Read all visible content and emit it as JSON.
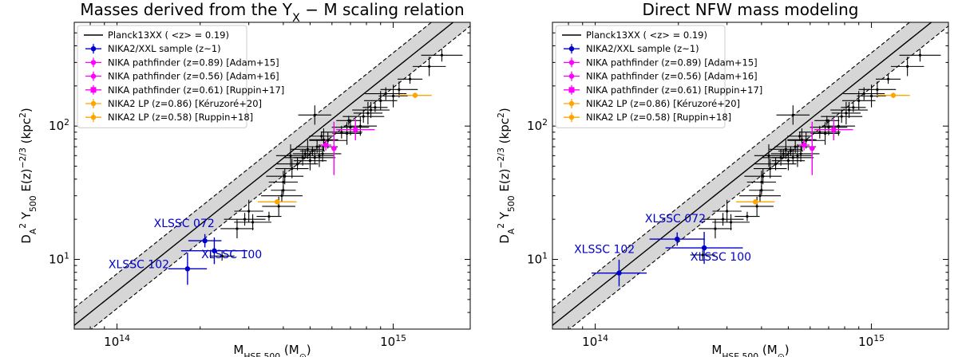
{
  "chart_data": [
    {
      "type": "scatter",
      "title": "Masses derived from the Y_X − M scaling relation",
      "xlabel": "M_HSE,500 (M_⊙)",
      "ylabel": "D_A^2 Y_500 E(z)^−2/3 (kpc^2)",
      "xscale": "log",
      "yscale": "log",
      "xlim": [
        70000000000000.0,
        1900000000000000.0
      ],
      "ylim": [
        3,
        600
      ],
      "xticks": [
        {
          "value": 100000000000000.0,
          "label": "10^14"
        },
        {
          "value": 1000000000000000.0,
          "label": "10^15"
        }
      ],
      "yticks": [
        {
          "value": 10,
          "label": "10^1"
        },
        {
          "value": 100,
          "label": "10^2"
        }
      ],
      "relation": {
        "name": "Planck13XX (<z> = 0.19)",
        "points": [
          [
            70000000000000.0,
            3.2
          ],
          [
            1900000000000000.0,
            760
          ]
        ],
        "band_factor": 1.35
      },
      "legend_position": "top-left",
      "legend": [
        {
          "label": "Planck13XX ( <z> = 0.19)",
          "color": "#000000",
          "kind": "line"
        },
        {
          "label": "NIKA2/XXL sample (z~1)",
          "color": "#0000cc",
          "kind": "point"
        },
        {
          "label": "NIKA pathfinder (z=0.89) [Adam+15]",
          "color": "#ff00ff",
          "kind": "point"
        },
        {
          "label": "NIKA pathfinder (z=0.56) [Adam+16]",
          "color": "#ff00ff",
          "kind": "point"
        },
        {
          "label": "NIKA pathfinder (z=0.61) [Ruppin+17]",
          "color": "#ff00ff",
          "kind": "square"
        },
        {
          "label": "NIKA2 LP (z=0.86) [Kéruzoré+20]",
          "color": "#ffa500",
          "kind": "point"
        },
        {
          "label": "NIKA2 LP (z=0.58) [Ruppin+18]",
          "color": "#ffa500",
          "kind": "point"
        }
      ],
      "series": [
        {
          "name": "NIKA2/XXL sample (z~1)",
          "color": "#0000cc",
          "points": [
            {
              "x": 180000000000000.0,
              "y": 8.5,
              "xerr": 0.07,
              "yerr": 0.12,
              "label": "XLSSC 102"
            },
            {
              "x": 208000000000000.0,
              "y": 13.8,
              "xerr": 0.06,
              "yerr": 0.05,
              "label": "XLSSC 072"
            },
            {
              "x": 225000000000000.0,
              "y": 11.6,
              "xerr": 0.12,
              "yerr": 0.1,
              "label": "XLSSC 100"
            }
          ]
        },
        {
          "name": "NIKA pathfinder",
          "color": "#ff00ff",
          "points": [
            {
              "x": 570000000000000.0,
              "y": 72,
              "xerr": 0.02,
              "yerr": 0.04
            },
            {
              "x": 610000000000000.0,
              "y": 68,
              "xerr": 0.01,
              "yerr": 0.2
            },
            {
              "x": 730000000000000.0,
              "y": 94,
              "xerr": 0.07,
              "yerr": 0.08
            }
          ]
        },
        {
          "name": "NIKA2 LP",
          "color": "#ffa500",
          "points": [
            {
              "x": 380000000000000.0,
              "y": 27,
              "xerr": 0.07,
              "yerr": 0.02
            },
            {
              "x": 1200000000000000.0,
              "y": 170,
              "xerr": 0.06,
              "yerr": 0.02
            }
          ]
        },
        {
          "name": "Planck13XX",
          "color": "#000000",
          "points": [
            {
              "x": 240000000000000.0,
              "y": 10.6
            },
            {
              "x": 272000000000000.0,
              "y": 17
            },
            {
              "x": 290000000000000.0,
              "y": 20
            },
            {
              "x": 300000000000000.0,
              "y": 23
            },
            {
              "x": 310000000000000.0,
              "y": 19
            },
            {
              "x": 355000000000000.0,
              "y": 21
            },
            {
              "x": 385000000000000.0,
              "y": 25
            },
            {
              "x": 395000000000000.0,
              "y": 30
            },
            {
              "x": 400000000000000.0,
              "y": 38
            },
            {
              "x": 405000000000000.0,
              "y": 42
            },
            {
              "x": 400000000000000.0,
              "y": 33
            },
            {
              "x": 430000000000000.0,
              "y": 48
            },
            {
              "x": 450000000000000.0,
              "y": 52
            },
            {
              "x": 425000000000000.0,
              "y": 60
            },
            {
              "x": 470000000000000.0,
              "y": 58
            },
            {
              "x": 480000000000000.0,
              "y": 62
            },
            {
              "x": 500000000000000.0,
              "y": 55
            },
            {
              "x": 520000000000000.0,
              "y": 58
            },
            {
              "x": 540000000000000.0,
              "y": 60
            },
            {
              "x": 555000000000000.0,
              "y": 62
            },
            {
              "x": 510000000000000.0,
              "y": 65
            },
            {
              "x": 490000000000000.0,
              "y": 67
            },
            {
              "x": 530000000000000.0,
              "y": 70
            },
            {
              "x": 560000000000000.0,
              "y": 79
            },
            {
              "x": 580000000000000.0,
              "y": 78
            },
            {
              "x": 550000000000000.0,
              "y": 84
            },
            {
              "x": 520000000000000.0,
              "y": 121
            },
            {
              "x": 650000000000000.0,
              "y": 90
            },
            {
              "x": 680000000000000.0,
              "y": 88
            },
            {
              "x": 700000000000000.0,
              "y": 98
            },
            {
              "x": 690000000000000.0,
              "y": 110
            },
            {
              "x": 760000000000000.0,
              "y": 100
            },
            {
              "x": 780000000000000.0,
              "y": 118
            },
            {
              "x": 810000000000000.0,
              "y": 125
            },
            {
              "x": 830000000000000.0,
              "y": 132
            },
            {
              "x": 860000000000000.0,
              "y": 138
            },
            {
              "x": 900000000000000.0,
              "y": 155
            },
            {
              "x": 940000000000000.0,
              "y": 175
            },
            {
              "x": 1000000000000000.0,
              "y": 168
            },
            {
              "x": 1050000000000000.0,
              "y": 188
            },
            {
              "x": 1150000000000000.0,
              "y": 225
            },
            {
              "x": 1350000000000000.0,
              "y": 280
            },
            {
              "x": 1500000000000000.0,
              "y": 340
            }
          ]
        }
      ],
      "annotations": [
        {
          "text": "XLSSC 072",
          "x": 175000000000000.0,
          "y": 17.5
        },
        {
          "text": "XLSSC 102",
          "x": 120000000000000.0,
          "y": 8.6
        },
        {
          "text": "XLSSC 100",
          "x": 260000000000000.0,
          "y": 10.2
        }
      ]
    },
    {
      "type": "scatter",
      "title": "Direct NFW mass modeling",
      "xlabel": "M_HSE,500 (M_⊙)",
      "ylabel": "D_A^2 Y_500 E(z)^−2/3 (kpc^2)",
      "xscale": "log",
      "yscale": "log",
      "xlim": [
        70000000000000.0,
        1900000000000000.0
      ],
      "ylim": [
        3,
        600
      ],
      "xticks": [
        {
          "value": 100000000000000.0,
          "label": "10^14"
        },
        {
          "value": 1000000000000000.0,
          "label": "10^15"
        }
      ],
      "yticks": [
        {
          "value": 10,
          "label": "10^1"
        },
        {
          "value": 100,
          "label": "10^2"
        }
      ],
      "relation": {
        "name": "Planck13XX (<z> = 0.19)",
        "points": [
          [
            70000000000000.0,
            3.2
          ],
          [
            1900000000000000.0,
            760
          ]
        ],
        "band_factor": 1.35
      },
      "legend_position": "top-left",
      "legend": [
        {
          "label": "Planck13XX ( <z> = 0.19)",
          "color": "#000000",
          "kind": "line"
        },
        {
          "label": "NIKA2/XXL sample (z~1)",
          "color": "#0000cc",
          "kind": "point"
        },
        {
          "label": "NIKA pathfinder (z=0.89) [Adam+15]",
          "color": "#ff00ff",
          "kind": "point"
        },
        {
          "label": "NIKA pathfinder (z=0.56) [Adam+16]",
          "color": "#ff00ff",
          "kind": "point"
        },
        {
          "label": "NIKA pathfinder (z=0.61) [Ruppin+17]",
          "color": "#ff00ff",
          "kind": "square"
        },
        {
          "label": "NIKA2 LP (z=0.86) [Kéruzoré+20]",
          "color": "#ffa500",
          "kind": "point"
        },
        {
          "label": "NIKA2 LP (z=0.58) [Ruppin+18]",
          "color": "#ffa500",
          "kind": "point"
        }
      ],
      "series": [
        {
          "name": "NIKA2/XXL sample (z~1)",
          "color": "#0000cc",
          "points": [
            {
              "x": 122000000000000.0,
              "y": 7.9,
              "xerr": 0.1,
              "yerr": 0.1,
              "label": "XLSSC 102"
            },
            {
              "x": 198000000000000.0,
              "y": 14.2,
              "xerr": 0.1,
              "yerr": 0.05,
              "label": "XLSSC 072"
            },
            {
              "x": 248000000000000.0,
              "y": 12.2,
              "xerr": 0.14,
              "yerr": 0.12,
              "label": "XLSSC 100"
            }
          ]
        },
        {
          "name": "NIKA pathfinder",
          "color": "#ff00ff",
          "points": [
            {
              "x": 570000000000000.0,
              "y": 72,
              "xerr": 0.02,
              "yerr": 0.04
            },
            {
              "x": 610000000000000.0,
              "y": 68,
              "xerr": 0.01,
              "yerr": 0.2
            },
            {
              "x": 730000000000000.0,
              "y": 94,
              "xerr": 0.07,
              "yerr": 0.08
            }
          ]
        },
        {
          "name": "NIKA2 LP",
          "color": "#ffa500",
          "points": [
            {
              "x": 380000000000000.0,
              "y": 27,
              "xerr": 0.07,
              "yerr": 0.02
            },
            {
              "x": 1200000000000000.0,
              "y": 170,
              "xerr": 0.06,
              "yerr": 0.02
            }
          ]
        },
        {
          "name": "Planck13XX",
          "color": "#000000",
          "points": [
            {
              "x": 245000000000000.0,
              "y": 10.8
            },
            {
              "x": 272000000000000.0,
              "y": 17
            },
            {
              "x": 290000000000000.0,
              "y": 20
            },
            {
              "x": 300000000000000.0,
              "y": 23
            },
            {
              "x": 310000000000000.0,
              "y": 19
            },
            {
              "x": 355000000000000.0,
              "y": 21
            },
            {
              "x": 385000000000000.0,
              "y": 25
            },
            {
              "x": 395000000000000.0,
              "y": 30
            },
            {
              "x": 400000000000000.0,
              "y": 38
            },
            {
              "x": 405000000000000.0,
              "y": 42
            },
            {
              "x": 400000000000000.0,
              "y": 33
            },
            {
              "x": 430000000000000.0,
              "y": 48
            },
            {
              "x": 450000000000000.0,
              "y": 52
            },
            {
              "x": 425000000000000.0,
              "y": 60
            },
            {
              "x": 470000000000000.0,
              "y": 58
            },
            {
              "x": 480000000000000.0,
              "y": 62
            },
            {
              "x": 500000000000000.0,
              "y": 55
            },
            {
              "x": 520000000000000.0,
              "y": 58
            },
            {
              "x": 540000000000000.0,
              "y": 60
            },
            {
              "x": 555000000000000.0,
              "y": 62
            },
            {
              "x": 510000000000000.0,
              "y": 65
            },
            {
              "x": 490000000000000.0,
              "y": 67
            },
            {
              "x": 530000000000000.0,
              "y": 70
            },
            {
              "x": 560000000000000.0,
              "y": 79
            },
            {
              "x": 580000000000000.0,
              "y": 78
            },
            {
              "x": 550000000000000.0,
              "y": 84
            },
            {
              "x": 520000000000000.0,
              "y": 121
            },
            {
              "x": 650000000000000.0,
              "y": 90
            },
            {
              "x": 680000000000000.0,
              "y": 88
            },
            {
              "x": 700000000000000.0,
              "y": 98
            },
            {
              "x": 690000000000000.0,
              "y": 110
            },
            {
              "x": 760000000000000.0,
              "y": 100
            },
            {
              "x": 780000000000000.0,
              "y": 118
            },
            {
              "x": 810000000000000.0,
              "y": 125
            },
            {
              "x": 830000000000000.0,
              "y": 132
            },
            {
              "x": 860000000000000.0,
              "y": 138
            },
            {
              "x": 900000000000000.0,
              "y": 155
            },
            {
              "x": 940000000000000.0,
              "y": 175
            },
            {
              "x": 1000000000000000.0,
              "y": 168
            },
            {
              "x": 1050000000000000.0,
              "y": 188
            },
            {
              "x": 1150000000000000.0,
              "y": 225
            },
            {
              "x": 1350000000000000.0,
              "y": 280
            },
            {
              "x": 1500000000000000.0,
              "y": 340
            }
          ]
        }
      ],
      "annotations": [
        {
          "text": "XLSSC 072",
          "x": 195000000000000.0,
          "y": 19
        },
        {
          "text": "XLSSC 102",
          "x": 108000000000000.0,
          "y": 11.2
        },
        {
          "text": "XLSSC 100",
          "x": 285000000000000.0,
          "y": 9.8
        }
      ]
    }
  ]
}
